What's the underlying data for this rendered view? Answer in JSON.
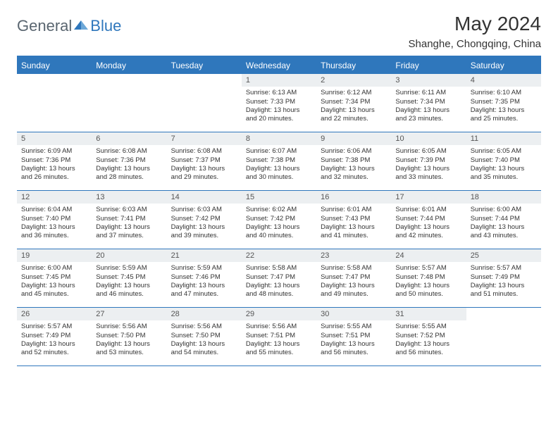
{
  "logo": {
    "text_general": "General",
    "text_blue": "Blue",
    "icon_color": "#2f77bc"
  },
  "title": "May 2024",
  "location": "Shanghe, Chongqing, China",
  "colors": {
    "header_bar": "#2f77bc",
    "daynum_bg": "#eceff1",
    "text": "#333333",
    "border": "#2f77bc"
  },
  "weekdays": [
    "Sunday",
    "Monday",
    "Tuesday",
    "Wednesday",
    "Thursday",
    "Friday",
    "Saturday"
  ],
  "weeks": [
    [
      null,
      null,
      null,
      {
        "n": "1",
        "sr": "6:13 AM",
        "ss": "7:33 PM",
        "dl": "13 hours and 20 minutes."
      },
      {
        "n": "2",
        "sr": "6:12 AM",
        "ss": "7:34 PM",
        "dl": "13 hours and 22 minutes."
      },
      {
        "n": "3",
        "sr": "6:11 AM",
        "ss": "7:34 PM",
        "dl": "13 hours and 23 minutes."
      },
      {
        "n": "4",
        "sr": "6:10 AM",
        "ss": "7:35 PM",
        "dl": "13 hours and 25 minutes."
      }
    ],
    [
      {
        "n": "5",
        "sr": "6:09 AM",
        "ss": "7:36 PM",
        "dl": "13 hours and 26 minutes."
      },
      {
        "n": "6",
        "sr": "6:08 AM",
        "ss": "7:36 PM",
        "dl": "13 hours and 28 minutes."
      },
      {
        "n": "7",
        "sr": "6:08 AM",
        "ss": "7:37 PM",
        "dl": "13 hours and 29 minutes."
      },
      {
        "n": "8",
        "sr": "6:07 AM",
        "ss": "7:38 PM",
        "dl": "13 hours and 30 minutes."
      },
      {
        "n": "9",
        "sr": "6:06 AM",
        "ss": "7:38 PM",
        "dl": "13 hours and 32 minutes."
      },
      {
        "n": "10",
        "sr": "6:05 AM",
        "ss": "7:39 PM",
        "dl": "13 hours and 33 minutes."
      },
      {
        "n": "11",
        "sr": "6:05 AM",
        "ss": "7:40 PM",
        "dl": "13 hours and 35 minutes."
      }
    ],
    [
      {
        "n": "12",
        "sr": "6:04 AM",
        "ss": "7:40 PM",
        "dl": "13 hours and 36 minutes."
      },
      {
        "n": "13",
        "sr": "6:03 AM",
        "ss": "7:41 PM",
        "dl": "13 hours and 37 minutes."
      },
      {
        "n": "14",
        "sr": "6:03 AM",
        "ss": "7:42 PM",
        "dl": "13 hours and 39 minutes."
      },
      {
        "n": "15",
        "sr": "6:02 AM",
        "ss": "7:42 PM",
        "dl": "13 hours and 40 minutes."
      },
      {
        "n": "16",
        "sr": "6:01 AM",
        "ss": "7:43 PM",
        "dl": "13 hours and 41 minutes."
      },
      {
        "n": "17",
        "sr": "6:01 AM",
        "ss": "7:44 PM",
        "dl": "13 hours and 42 minutes."
      },
      {
        "n": "18",
        "sr": "6:00 AM",
        "ss": "7:44 PM",
        "dl": "13 hours and 43 minutes."
      }
    ],
    [
      {
        "n": "19",
        "sr": "6:00 AM",
        "ss": "7:45 PM",
        "dl": "13 hours and 45 minutes."
      },
      {
        "n": "20",
        "sr": "5:59 AM",
        "ss": "7:45 PM",
        "dl": "13 hours and 46 minutes."
      },
      {
        "n": "21",
        "sr": "5:59 AM",
        "ss": "7:46 PM",
        "dl": "13 hours and 47 minutes."
      },
      {
        "n": "22",
        "sr": "5:58 AM",
        "ss": "7:47 PM",
        "dl": "13 hours and 48 minutes."
      },
      {
        "n": "23",
        "sr": "5:58 AM",
        "ss": "7:47 PM",
        "dl": "13 hours and 49 minutes."
      },
      {
        "n": "24",
        "sr": "5:57 AM",
        "ss": "7:48 PM",
        "dl": "13 hours and 50 minutes."
      },
      {
        "n": "25",
        "sr": "5:57 AM",
        "ss": "7:49 PM",
        "dl": "13 hours and 51 minutes."
      }
    ],
    [
      {
        "n": "26",
        "sr": "5:57 AM",
        "ss": "7:49 PM",
        "dl": "13 hours and 52 minutes."
      },
      {
        "n": "27",
        "sr": "5:56 AM",
        "ss": "7:50 PM",
        "dl": "13 hours and 53 minutes."
      },
      {
        "n": "28",
        "sr": "5:56 AM",
        "ss": "7:50 PM",
        "dl": "13 hours and 54 minutes."
      },
      {
        "n": "29",
        "sr": "5:56 AM",
        "ss": "7:51 PM",
        "dl": "13 hours and 55 minutes."
      },
      {
        "n": "30",
        "sr": "5:55 AM",
        "ss": "7:51 PM",
        "dl": "13 hours and 56 minutes."
      },
      {
        "n": "31",
        "sr": "5:55 AM",
        "ss": "7:52 PM",
        "dl": "13 hours and 56 minutes."
      },
      null
    ]
  ],
  "labels": {
    "sunrise": "Sunrise:",
    "sunset": "Sunset:",
    "daylight": "Daylight:"
  }
}
